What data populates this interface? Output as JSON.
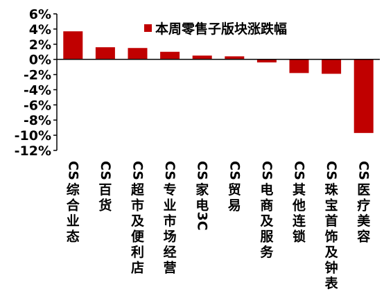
{
  "chart_data": {
    "type": "bar",
    "title": "",
    "xlabel": "",
    "ylabel": "",
    "categories": [
      "CS综合业态",
      "CS百货",
      "CS超市及便利店",
      "CS专业市场经营",
      "CS家电3C",
      "CS贸易",
      "CS电商及服务",
      "CS其他连锁",
      "CS珠宝首饰及钟表",
      "CS医疗美容"
    ],
    "series": [
      {
        "name": "本周零售子版块涨跌幅",
        "values": [
          3.7,
          1.6,
          1.5,
          1.0,
          0.5,
          0.4,
          -0.4,
          -1.8,
          -1.9,
          -9.7
        ],
        "color": "#c00000"
      }
    ],
    "ylim": [
      -12,
      6
    ],
    "yticks": [
      6,
      4,
      2,
      0,
      -2,
      -4,
      -6,
      -8,
      -10,
      -12
    ],
    "ytick_labels": [
      "6%",
      "4%",
      "2%",
      "0%",
      "-2%",
      "-4%",
      "-6%",
      "-8%",
      "-10%",
      "-12%"
    ],
    "grid": false,
    "legend_position": "top"
  }
}
